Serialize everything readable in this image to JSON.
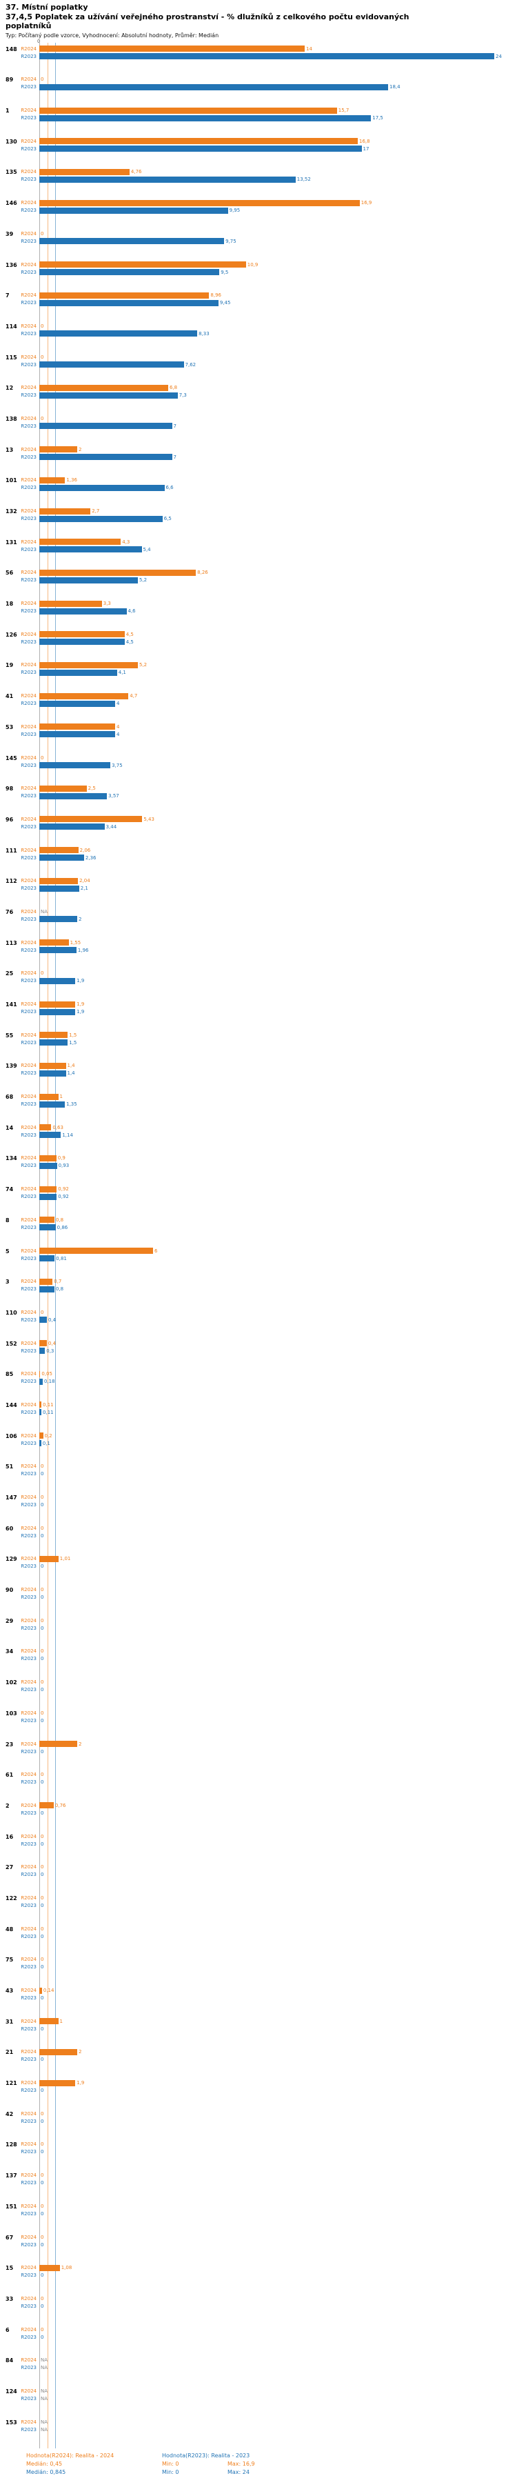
{
  "header": {
    "title": "37. Místní poplatky",
    "subtitle": "37,4,5 Poplatek za užívání veřejného prostranství - % dlužníků z celkového počtu evidovaných poplatníků",
    "meta": "Typ: Počítaný podle vzorce, Vyhodnocení: Absolutní hodnoty, Průměr: Medián"
  },
  "axis": {
    "zero_label": "0"
  },
  "legend": {
    "r2024_title": "Hodnota(R2024): Realita - 2024",
    "r2023_title": "Hodnota(R2023): Realita - 2023",
    "r2024_median": "Medián: 0,45",
    "r2024_min": "Min: 0",
    "r2024_max": "Max: 16,9",
    "r2023_median": "Medián: 0,845",
    "r2023_min": "Min: 0",
    "r2023_max": "Max: 24"
  },
  "chart_data": {
    "type": "bar",
    "orientation": "horizontal",
    "title": "37,4,5 Poplatek za užívání veřejného prostranství - % dlužníků z celkového počtu evidovaných poplatníků",
    "xlabel": "",
    "ylabel": "",
    "xlim": [
      0,
      24
    ],
    "grid": false,
    "value_labels": true,
    "na_label": "NA",
    "legend_position": "bottom",
    "sort": "descending by R2023",
    "categories": [
      "148",
      "89",
      "1",
      "130",
      "135",
      "146",
      "39",
      "136",
      "7",
      "114",
      "115",
      "12",
      "138",
      "13",
      "101",
      "132",
      "131",
      "56",
      "18",
      "126",
      "19",
      "41",
      "53",
      "145",
      "98",
      "96",
      "111",
      "112",
      "76",
      "113",
      "25",
      "141",
      "55",
      "139",
      "68",
      "14",
      "134",
      "74",
      "8",
      "5",
      "3",
      "110",
      "152",
      "85",
      "144",
      "106",
      "51",
      "147",
      "60",
      "129",
      "90",
      "29",
      "34",
      "102",
      "103",
      "23",
      "61",
      "2",
      "16",
      "27",
      "122",
      "48",
      "75",
      "43",
      "31",
      "21",
      "121",
      "42",
      "128",
      "137",
      "151",
      "67",
      "15",
      "33",
      "6",
      "84",
      "124",
      "153"
    ],
    "series": [
      {
        "name": "Hodnota(R2024): Realita - 2024",
        "year_label": "R2024",
        "color": "#EE7F1D",
        "median": 0.45,
        "min": 0,
        "max": 16.9,
        "values": [
          14,
          0,
          15.7,
          16.8,
          4.76,
          16.9,
          0,
          10.9,
          8.96,
          0,
          0,
          6.8,
          0,
          2,
          1.36,
          2.7,
          4.3,
          8.26,
          3.3,
          4.5,
          5.2,
          4.7,
          4,
          0,
          2.5,
          5.43,
          2.06,
          2.04,
          null,
          1.55,
          0,
          1.9,
          1.5,
          1.4,
          1,
          0.63,
          0.9,
          0.92,
          0.8,
          6,
          0.7,
          0,
          0.4,
          0.05,
          0.11,
          0.2,
          0,
          0,
          0,
          1.01,
          0,
          0,
          0,
          0,
          0,
          2,
          0,
          0.76,
          0,
          0,
          0,
          0,
          0,
          0.14,
          1,
          2,
          1.9,
          0,
          0,
          0,
          0,
          0,
          1.08,
          0,
          0,
          null,
          null,
          null
        ]
      },
      {
        "name": "Hodnota(R2023): Realita - 2023",
        "year_label": "R2023",
        "color": "#2274B5",
        "median": 0.845,
        "min": 0,
        "max": 24,
        "values": [
          24,
          18.4,
          17.5,
          17,
          13.52,
          9.95,
          9.75,
          9.5,
          9.45,
          8.33,
          7.62,
          7.3,
          7,
          7,
          6.6,
          6.5,
          5.4,
          5.2,
          4.6,
          4.5,
          4.1,
          4,
          4,
          3.75,
          3.57,
          3.44,
          2.36,
          2.1,
          2,
          1.96,
          1.9,
          1.9,
          1.5,
          1.4,
          1.35,
          1.14,
          0.93,
          0.92,
          0.86,
          0.81,
          0.8,
          0.4,
          0.3,
          0.18,
          0.11,
          0.1,
          0,
          0,
          0,
          0,
          0,
          0,
          0,
          0,
          0,
          0,
          0,
          0,
          0,
          0,
          0,
          0,
          0,
          0,
          0,
          0,
          0,
          0,
          0,
          0,
          0,
          0,
          0,
          0,
          0,
          null,
          null,
          null
        ]
      }
    ]
  }
}
